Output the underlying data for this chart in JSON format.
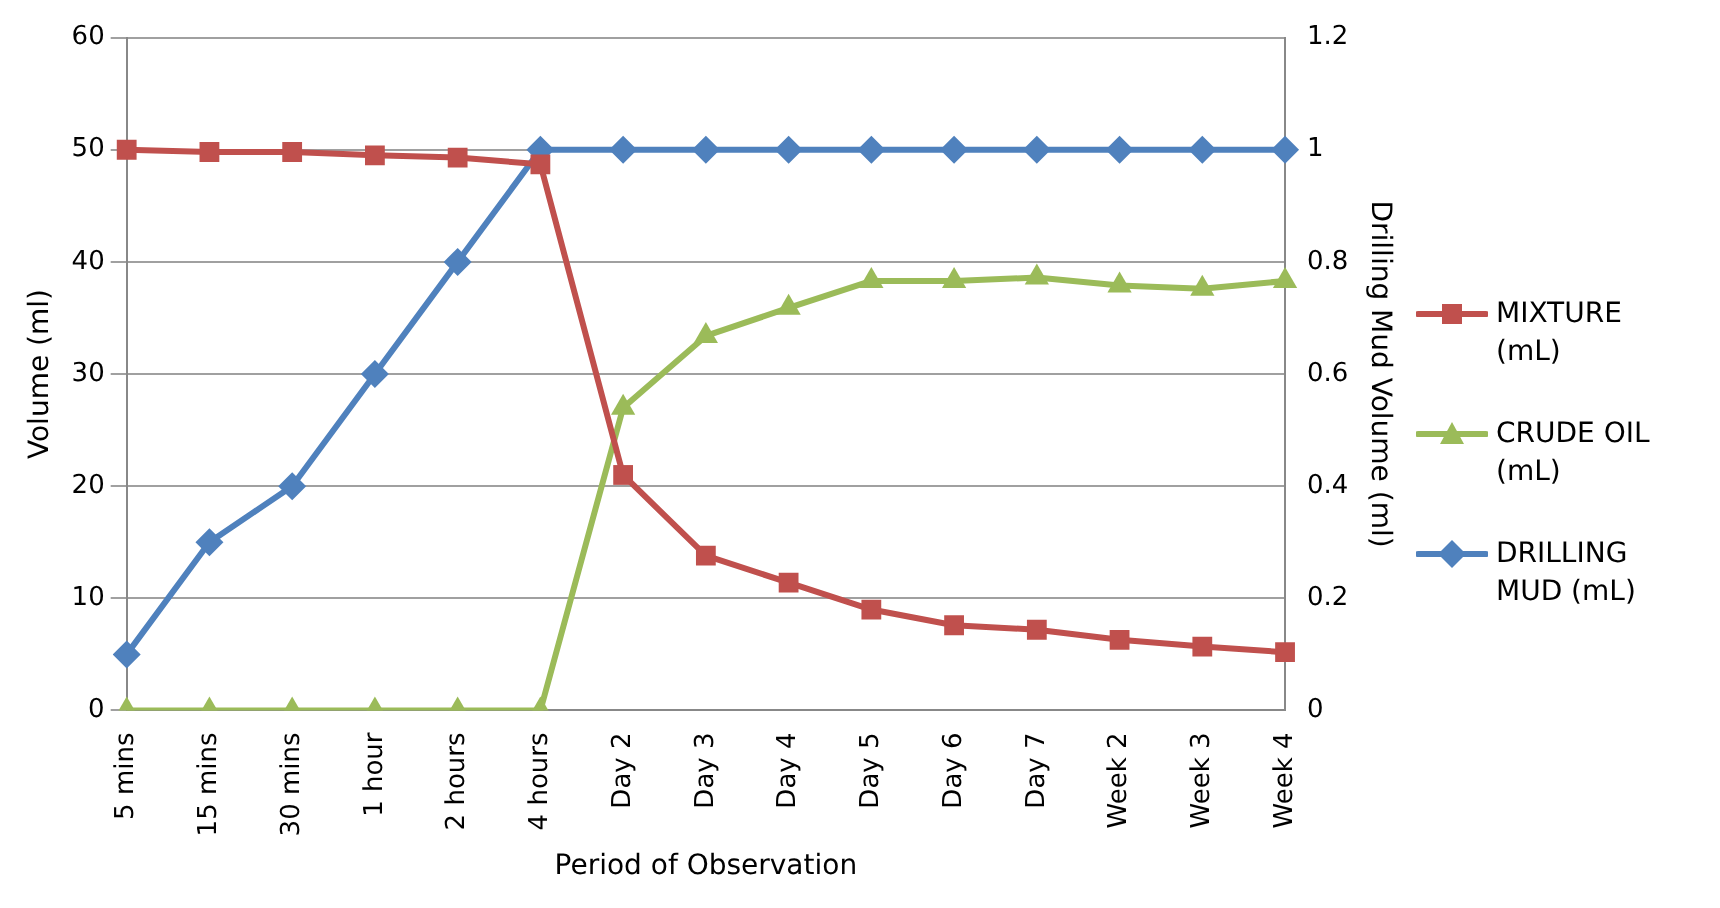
{
  "chart_data": {
    "type": "line",
    "xlabel": "Period of Observation",
    "ylabel": "Volume (ml)",
    "y2label": "Drilling Mud Volume (ml)",
    "categories": [
      "5 mins",
      "15 mins",
      "30 mins",
      "1 hour",
      "2 hours",
      "4 hours",
      "Day 2",
      "Day 3",
      "Day 4",
      "Day 5",
      "Day 6",
      "Day 7",
      "Week 2",
      "Week 3",
      "Week 4"
    ],
    "series": [
      {
        "name": "MIXTURE (mL)",
        "color": "#c0504d",
        "marker": "square",
        "values": [
          50,
          49.8,
          49.8,
          49.5,
          49.3,
          48.7,
          21,
          13.8,
          11.4,
          9,
          7.6,
          7.2,
          6.3,
          5.7,
          5.2
        ]
      },
      {
        "name": "CRUDE OIL (mL)",
        "color": "#9bbb59",
        "marker": "triangle",
        "values": [
          0,
          0,
          0,
          0,
          0,
          0,
          27,
          33.4,
          35.9,
          38.3,
          38.3,
          38.6,
          37.9,
          37.6,
          38.3
        ]
      },
      {
        "name": "DRILLING MUD (mL)",
        "color": "#4f81bd",
        "marker": "diamond",
        "axis": "y2",
        "values": [
          0.1,
          0.3,
          0.4,
          0.6,
          0.8,
          1,
          1,
          1,
          1,
          1,
          1,
          1,
          1,
          1,
          1
        ]
      }
    ],
    "ylim": [
      0,
      60
    ],
    "yticks": [
      0,
      10,
      20,
      30,
      40,
      50,
      60
    ],
    "y2lim": [
      0,
      1.2
    ],
    "y2ticks": [
      0,
      0.2,
      0.4,
      0.6,
      0.8,
      1,
      1.2
    ],
    "grid": "y",
    "legend": "right"
  }
}
